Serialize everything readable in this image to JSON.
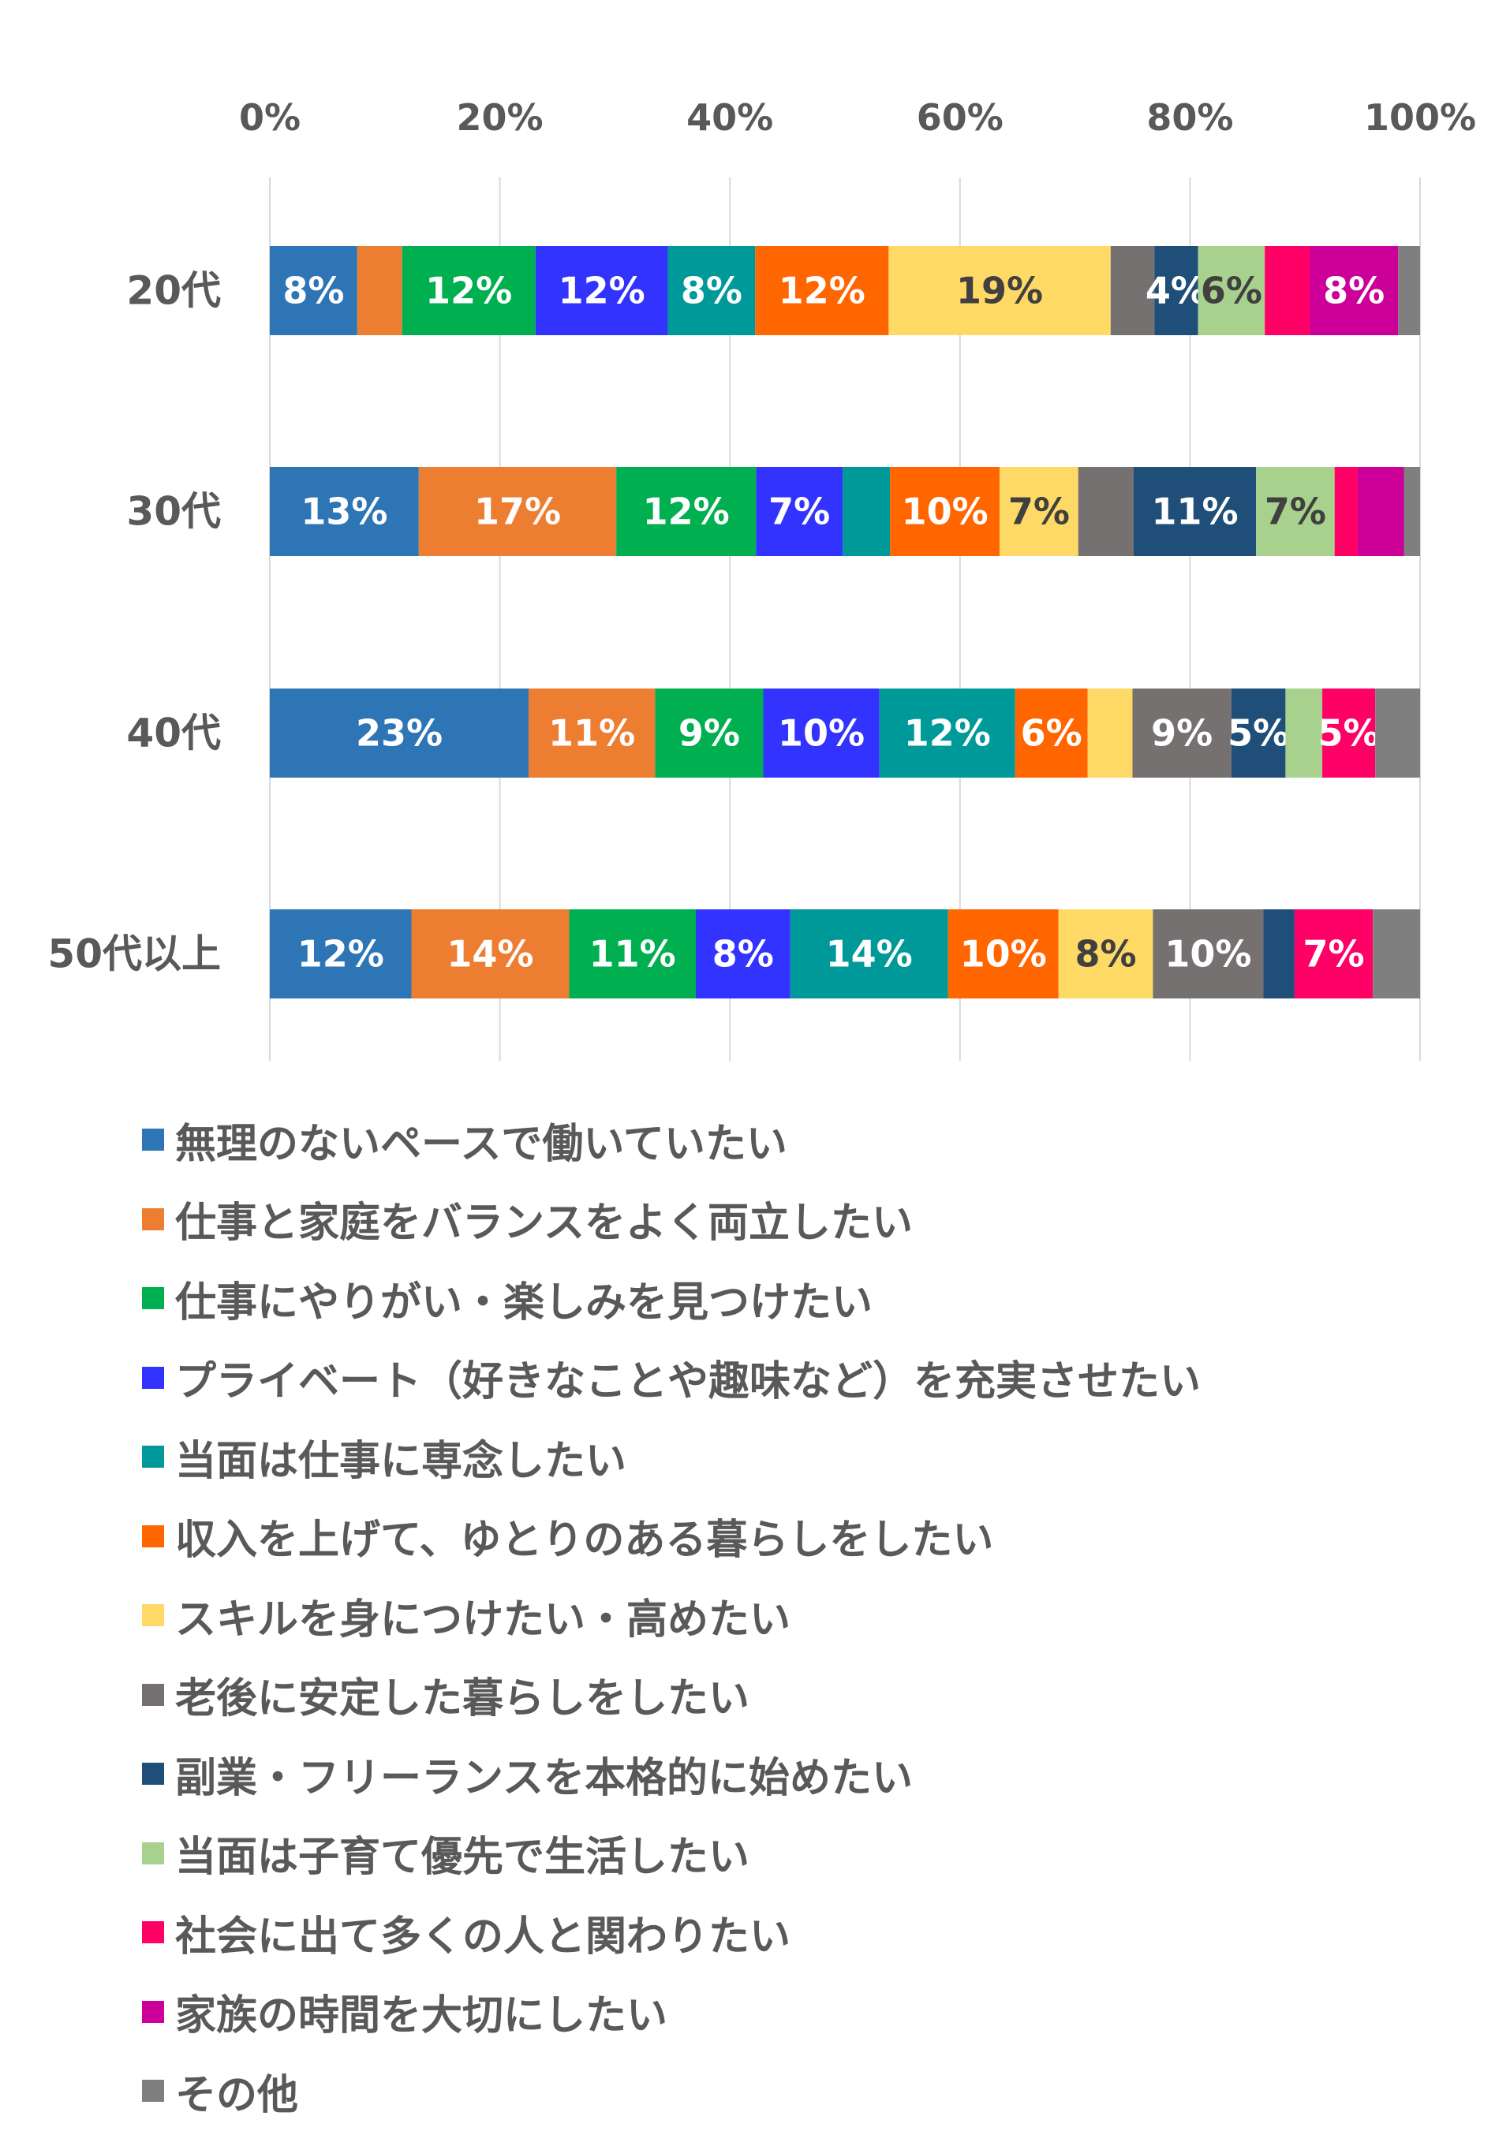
{
  "colors": {
    "axis_text": "#595959",
    "gridline": "#d9d9d9"
  },
  "chart_data": {
    "type": "stacked-bar-100",
    "orientation": "horizontal",
    "xlim": [
      0,
      100
    ],
    "x_ticks": [
      "0%",
      "20%",
      "40%",
      "60%",
      "80%",
      "100%"
    ],
    "categories": [
      "20代",
      "30代",
      "40代",
      "50代以上"
    ],
    "legend_position": "bottom",
    "series": [
      {
        "name": "無理のないペースで働いていたい",
        "color": "#2e75b6",
        "label_color": "#ffffff",
        "values": [
          7.6,
          12.9,
          22.5,
          12.3
        ],
        "labels": [
          "8%",
          "13%",
          "23%",
          "12%"
        ]
      },
      {
        "name": "仕事と家庭をバランスをよく両立したい",
        "color": "#ed7d31",
        "label_color": "#ffffff",
        "values": [
          3.9,
          17.1,
          11.0,
          13.7
        ],
        "labels": [
          "",
          "17%",
          "11%",
          "14%"
        ]
      },
      {
        "name": "仕事にやりがい・楽しみを見つけたい",
        "color": "#00b050",
        "label_color": "#ffffff",
        "values": [
          11.6,
          12.1,
          9.4,
          11.0
        ],
        "labels": [
          "12%",
          "12%",
          "9%",
          "11%"
        ]
      },
      {
        "name": "プライベート（好きなことや趣味など）を充実させたい",
        "color": "#3333ff",
        "label_color": "#ffffff",
        "values": [
          11.5,
          7.5,
          10.1,
          8.2
        ],
        "labels": [
          "12%",
          "7%",
          "10%",
          "8%"
        ]
      },
      {
        "name": "当面は仕事に専念したい",
        "color": "#009999",
        "label_color": "#ffffff",
        "values": [
          7.6,
          4.1,
          11.8,
          13.7
        ],
        "labels": [
          "8%",
          "",
          "12%",
          "14%"
        ]
      },
      {
        "name": "収入を上げて、ゆとりのある暮らしをしたい",
        "color": "#ff6600",
        "label_color": "#ffffff",
        "values": [
          11.6,
          9.5,
          6.3,
          9.6
        ],
        "labels": [
          "12%",
          "10%",
          "6%",
          "10%"
        ]
      },
      {
        "name": "スキルを身につけたい・高めたい",
        "color": "#ffd966",
        "label_color": "#404040",
        "values": [
          19.3,
          6.8,
          3.9,
          8.2
        ],
        "labels": [
          "19%",
          "7%",
          "",
          "8%"
        ]
      },
      {
        "name": "老後に安定した暮らしをしたい",
        "color": "#767171",
        "label_color": "#ffffff",
        "values": [
          3.8,
          4.8,
          8.6,
          9.6
        ],
        "labels": [
          "",
          "",
          "9%",
          "10%"
        ]
      },
      {
        "name": "副業・フリーランスを本格的に始めたい",
        "color": "#1f4e79",
        "label_color": "#ffffff",
        "values": [
          3.8,
          10.6,
          4.7,
          2.7
        ],
        "labels": [
          "4%",
          "11%",
          "5%",
          ""
        ]
      },
      {
        "name": "当面は子育て優先で生活したい",
        "color": "#a9d18e",
        "label_color": "#404040",
        "values": [
          5.8,
          6.8,
          3.2,
          0.0
        ],
        "labels": [
          "6%",
          "7%",
          "",
          ""
        ]
      },
      {
        "name": "社会に出て多くの人と関わりたい",
        "color": "#ff0066",
        "label_color": "#ffffff",
        "values": [
          3.9,
          2.0,
          4.6,
          6.8
        ],
        "labels": [
          "",
          "",
          "5%",
          "7%"
        ]
      },
      {
        "name": "家族の時間を大切にしたい",
        "color": "#cc0099",
        "label_color": "#ffffff",
        "values": [
          7.7,
          4.0,
          0.0,
          0.0
        ],
        "labels": [
          "8%",
          "",
          "",
          ""
        ]
      },
      {
        "name": "その他",
        "color": "#7f7f7f",
        "label_color": "#ffffff",
        "values": [
          1.9,
          1.4,
          3.9,
          4.1
        ],
        "labels": [
          "",
          "",
          "",
          ""
        ]
      }
    ]
  }
}
